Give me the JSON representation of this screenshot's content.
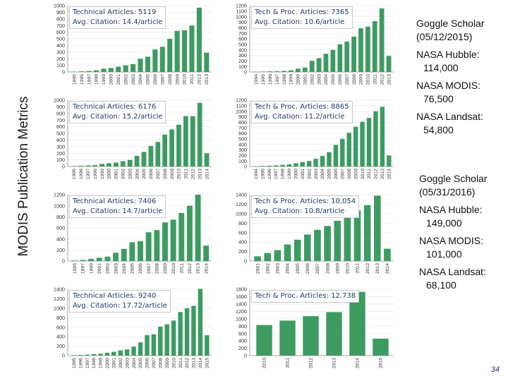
{
  "page": {
    "ylabel": "MODIS Publication Metrics",
    "page_number": "34"
  },
  "side_notes": [
    {
      "date_label": "Goggle Scholar",
      "date_value": "(05/12/2015)",
      "items": [
        {
          "name": "NASA Hubble:",
          "value": "114,000"
        },
        {
          "name": "NASA MODIS:",
          "value": "76,500"
        },
        {
          "name": "NASA Landsat:",
          "value": "54,800"
        }
      ]
    },
    {
      "date_label": "Goggle Scholar",
      "date_value": "(05/31/2016)",
      "items": [
        {
          "name": "NASA Hubble:",
          "value": "149,000"
        },
        {
          "name": "NASA MODIS:",
          "value": "101,000"
        },
        {
          "name": "NASA Landsat:",
          "value": "68,100"
        }
      ]
    }
  ],
  "colors": {
    "bar": "#3d9b62",
    "axis": "#888888",
    "grid": "#e6e6e6",
    "tick": "#333333"
  },
  "chart_data": [
    {
      "type": "bar",
      "annotation": [
        "Technical Articles: 5119",
        "Avg. Citation: 14.4/article"
      ],
      "yticks": [
        0,
        100,
        200,
        300,
        400,
        500,
        600,
        700,
        800,
        900,
        1000
      ],
      "ylim": [
        0,
        1000
      ],
      "categories": [
        "1995",
        "1996",
        "1997",
        "1998",
        "1999",
        "2000",
        "2001",
        "2002",
        "2003",
        "2004",
        "2005",
        "2006",
        "2007",
        "2008",
        "2009",
        "2010",
        "2011",
        "2012",
        "2013"
      ],
      "values": [
        5,
        10,
        15,
        25,
        50,
        60,
        80,
        100,
        120,
        200,
        230,
        340,
        380,
        500,
        620,
        630,
        700,
        970,
        290
      ]
    },
    {
      "type": "bar",
      "annotation": [
        "Tech & Proc. Articles: 7365",
        "Avg. Citation: 10.6/article"
      ],
      "yticks": [
        0,
        100,
        200,
        300,
        400,
        500,
        600,
        700,
        800,
        900,
        1000,
        1100,
        1200
      ],
      "ylim": [
        0,
        1200
      ],
      "categories": [
        "1994",
        "1995",
        "1996",
        "1997",
        "1998",
        "1999",
        "2000",
        "2001",
        "2002",
        "2003",
        "2004",
        "2005",
        "2006",
        "2007",
        "2008",
        "2009",
        "2010",
        "2011",
        "2012",
        "2013"
      ],
      "values": [
        5,
        8,
        12,
        15,
        20,
        30,
        60,
        80,
        200,
        250,
        330,
        400,
        500,
        550,
        640,
        790,
        820,
        920,
        1150,
        290
      ]
    },
    {
      "type": "bar",
      "annotation": [
        "Technical Articles: 6176",
        "Avg. Citation: 15.2/article"
      ],
      "yticks": [
        0,
        100,
        200,
        300,
        400,
        500,
        600,
        700,
        800,
        900,
        1000
      ],
      "ylim": [
        0,
        1000
      ],
      "categories": [
        "1995",
        "1996",
        "1997",
        "1998",
        "1999",
        "2000",
        "2001",
        "2002",
        "2003",
        "2004",
        "2005",
        "2006",
        "2007",
        "2008",
        "2009",
        "2010",
        "2011",
        "2012",
        "2013",
        "2014"
      ],
      "values": [
        5,
        10,
        15,
        20,
        40,
        50,
        60,
        80,
        100,
        160,
        220,
        310,
        370,
        480,
        560,
        630,
        760,
        760,
        960,
        200
      ]
    },
    {
      "type": "bar",
      "annotation": [
        "Tech & Proc. Articles: 8865",
        "Avg. Citation: 11.2/article"
      ],
      "yticks": [
        0,
        100,
        200,
        300,
        400,
        500,
        600,
        700,
        800,
        900,
        1000,
        1100,
        1200
      ],
      "ylim": [
        0,
        1200
      ],
      "categories": [
        "1994",
        "1995",
        "1996",
        "1997",
        "1998",
        "1999",
        "2000",
        "2001",
        "2002",
        "2003",
        "2004",
        "2005",
        "2006",
        "2007",
        "2008",
        "2009",
        "2010",
        "2011",
        "2012",
        "2013",
        "2014"
      ],
      "values": [
        5,
        10,
        15,
        20,
        30,
        40,
        60,
        80,
        100,
        140,
        190,
        260,
        390,
        500,
        610,
        720,
        810,
        880,
        1000,
        1080,
        200
      ]
    },
    {
      "type": "bar",
      "annotation": [
        "Technical Articles: 7406",
        "Avg. Citation: 14.7/article"
      ],
      "yticks": [
        0,
        200,
        400,
        600,
        800,
        1000,
        1200
      ],
      "ylim": [
        0,
        1200
      ],
      "categories": [
        "1995",
        "1997",
        "1999",
        "2001",
        "2002",
        "2003",
        "2004",
        "2005",
        "2006",
        "2007",
        "2008",
        "2009",
        "2010",
        "2011",
        "2012",
        "2013",
        "2014"
      ],
      "values": [
        10,
        20,
        40,
        60,
        80,
        150,
        220,
        340,
        360,
        520,
        560,
        700,
        750,
        870,
        1000,
        1200,
        280
      ]
    },
    {
      "type": "bar",
      "annotation": [
        "Tech & Proc. Articles: 10,054",
        "Avg. Citation: 10.8/article"
      ],
      "yticks": [
        0,
        200,
        400,
        600,
        800,
        1000,
        1200,
        1400
      ],
      "ylim": [
        0,
        1400
      ],
      "categories": [
        "2001",
        "2002",
        "2003",
        "2004",
        "2005",
        "2006",
        "2007",
        "2008",
        "2009",
        "2010",
        "2011",
        "2012",
        "2013",
        "2014"
      ],
      "values": [
        100,
        170,
        230,
        350,
        450,
        560,
        660,
        740,
        850,
        950,
        1070,
        1180,
        1380,
        260
      ]
    },
    {
      "type": "bar",
      "annotation": [
        "Technical Articles: 9240",
        "Avg. Citation: 17.72/article"
      ],
      "yticks": [
        0,
        200,
        400,
        600,
        800,
        1000,
        1200,
        1400
      ],
      "ylim": [
        0,
        1400
      ],
      "categories": [
        "1995",
        "1996",
        "1997",
        "1998",
        "1999",
        "2000",
        "2001",
        "2002",
        "2003",
        "2004",
        "2005",
        "2006",
        "2007",
        "2008",
        "2009",
        "2010",
        "2011",
        "2012",
        "2013",
        "2014",
        "2015"
      ],
      "values": [
        10,
        15,
        20,
        30,
        40,
        60,
        80,
        110,
        130,
        190,
        280,
        430,
        450,
        610,
        660,
        740,
        920,
        1000,
        1050,
        1410,
        430
      ]
    },
    {
      "type": "bar",
      "annotation": [
        "Tech & Proc. Articles: 12,738"
      ],
      "yticks": [
        0,
        200,
        400,
        600,
        800,
        1000,
        1200,
        1400,
        1600,
        1800
      ],
      "ylim": [
        0,
        1800
      ],
      "categories": [
        "2010",
        "2011",
        "2012",
        "2013",
        "2014",
        "2015"
      ],
      "values": [
        830,
        950,
        1070,
        1180,
        1730,
        460
      ]
    }
  ]
}
